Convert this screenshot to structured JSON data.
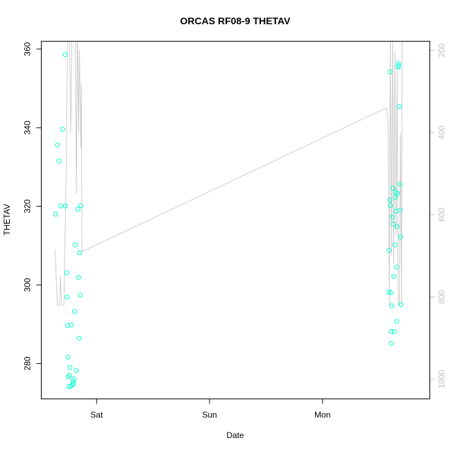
{
  "chart_data": {
    "type": "scatter",
    "title": "ORCAS RF08-9 THETAV",
    "xlabel": "Date",
    "ylabel": "THETAV",
    "x_axis": {
      "ticks": [
        "Sat",
        "Sun",
        "Mon"
      ],
      "tick_values_days": [
        0,
        1,
        2
      ],
      "range_days": [
        -0.49,
        2.95
      ]
    },
    "y_left": {
      "range": [
        271,
        362
      ],
      "ticks": [
        280,
        300,
        320,
        340,
        360
      ]
    },
    "y_right": {
      "range": [
        1048,
        178
      ],
      "ticks": [
        200,
        400,
        600,
        800,
        1000
      ]
    },
    "colors": {
      "points": "#00ffcc",
      "line": "#cccccc",
      "right_axis": "#c0c0c0",
      "axis": "#000000"
    },
    "series": [
      {
        "style": "points",
        "axis": "left",
        "points": [
          [
            -0.362,
            318.0
          ],
          [
            -0.347,
            335.6
          ],
          [
            -0.332,
            331.5
          ],
          [
            -0.317,
            320.1
          ],
          [
            -0.302,
            339.6
          ],
          [
            -0.278,
            358.6
          ],
          [
            -0.275,
            320.1
          ],
          [
            -0.265,
            303.1
          ],
          [
            -0.262,
            296.9
          ],
          [
            -0.257,
            289.7
          ],
          [
            -0.253,
            281.6
          ],
          [
            -0.25,
            276.6
          ],
          [
            -0.244,
            274.1
          ],
          [
            -0.24,
            277.0
          ],
          [
            -0.236,
            279.0
          ],
          [
            -0.23,
            274.2
          ],
          [
            -0.224,
            289.8
          ],
          [
            -0.215,
            274.6
          ],
          [
            -0.208,
            275.5
          ],
          [
            -0.204,
            274.9
          ],
          [
            -0.201,
            276.1
          ],
          [
            -0.195,
            293.2
          ],
          [
            -0.187,
            310.2
          ],
          [
            -0.18,
            278.2
          ],
          [
            -0.165,
            319.3
          ],
          [
            -0.16,
            301.9
          ],
          [
            -0.155,
            286.4
          ],
          [
            -0.151,
            308.2
          ],
          [
            -0.145,
            297.4
          ],
          [
            -0.139,
            320.2
          ],
          [
            2.588,
            298.2
          ],
          [
            2.589,
            308.8
          ],
          [
            2.595,
            321.6
          ],
          [
            2.598,
            354.2
          ],
          [
            2.601,
            320.2
          ],
          [
            2.604,
            298.0
          ],
          [
            2.609,
            285.1
          ],
          [
            2.61,
            288.1
          ],
          [
            2.613,
            294.7
          ],
          [
            2.619,
            317.3
          ],
          [
            2.623,
            324.6
          ],
          [
            2.628,
            315.5
          ],
          [
            2.632,
            302.2
          ],
          [
            2.636,
            288.1
          ],
          [
            2.64,
            310.2
          ],
          [
            2.644,
            322.3
          ],
          [
            2.647,
            323.6
          ],
          [
            2.651,
            318.8
          ],
          [
            2.654,
            304.5
          ],
          [
            2.657,
            290.7
          ],
          [
            2.659,
            314.8
          ],
          [
            2.663,
            323.3
          ],
          [
            2.668,
            355.4
          ],
          [
            2.671,
            356.4
          ],
          [
            2.675,
            355.8
          ],
          [
            2.681,
            345.4
          ],
          [
            2.684,
            325.6
          ],
          [
            2.688,
            319.0
          ],
          [
            2.69,
            312.2
          ],
          [
            2.693,
            295.0
          ]
        ]
      },
      {
        "style": "line",
        "axis": "right",
        "points": [
          [
            -0.368,
            684
          ],
          [
            -0.348,
            820
          ],
          [
            -0.33,
            820
          ],
          [
            -0.32,
            750
          ],
          [
            -0.31,
            820
          ],
          [
            -0.29,
            820
          ],
          [
            -0.27,
            500
          ],
          [
            -0.255,
            100
          ],
          [
            -0.24,
            170
          ],
          [
            -0.23,
            400
          ],
          [
            -0.215,
            100
          ],
          [
            -0.2,
            150
          ],
          [
            -0.19,
            100
          ],
          [
            -0.18,
            550
          ],
          [
            -0.17,
            120
          ],
          [
            -0.16,
            400
          ],
          [
            -0.152,
            200
          ],
          [
            -0.14,
            440
          ],
          [
            -0.135,
            282
          ],
          [
            -0.13,
            690
          ],
          [
            2.565,
            340
          ],
          [
            2.58,
            370
          ],
          [
            2.592,
            820
          ],
          [
            2.6,
            150
          ],
          [
            2.61,
            700
          ],
          [
            2.62,
            160
          ],
          [
            2.63,
            720
          ],
          [
            2.64,
            200
          ],
          [
            2.65,
            650
          ],
          [
            2.66,
            250
          ],
          [
            2.67,
            820
          ],
          [
            2.68,
            820
          ],
          [
            2.69,
            400
          ],
          [
            2.7,
            820
          ],
          [
            2.705,
            120
          ]
        ]
      }
    ]
  }
}
